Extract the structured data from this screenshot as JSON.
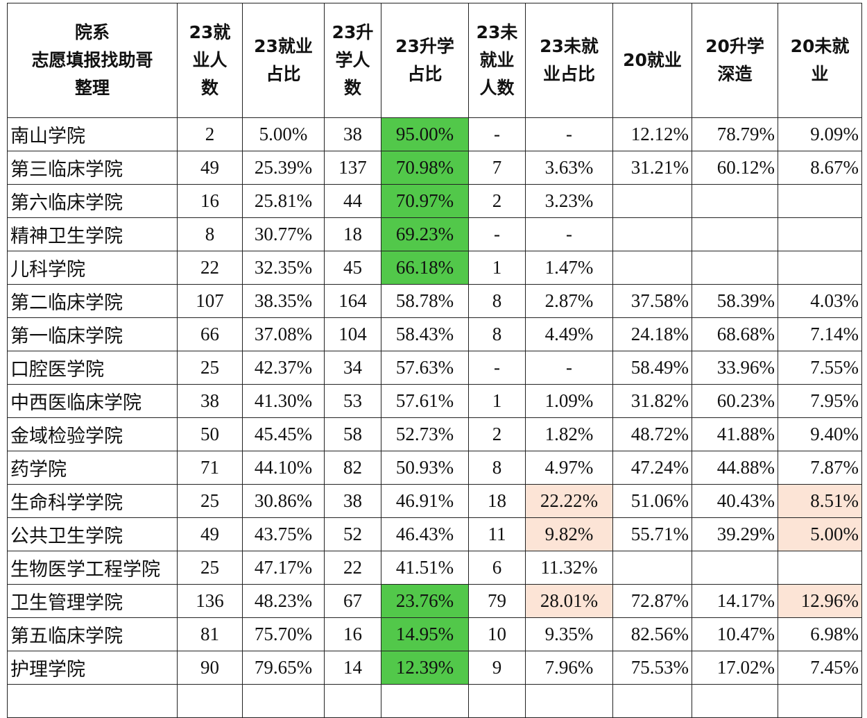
{
  "table": {
    "header": [
      "院系\n志愿填报找助哥\n整理",
      "23就\n业人\n数",
      "23就业\n占比",
      "23升\n学人\n数",
      "23升学\n占比",
      "23未\n就业\n人数",
      "23未就\n业占比",
      "20就业",
      "20升学\n深造",
      "20未就\n业"
    ],
    "rows": [
      [
        "南山学院",
        "2",
        "5.00%",
        "38",
        {
          "text": "95.00%",
          "fill": "#52c84a"
        },
        "-",
        "-",
        "12.12%",
        "78.79%",
        "9.09%"
      ],
      [
        "第三临床学院",
        "49",
        "25.39%",
        "137",
        {
          "text": "70.98%",
          "fill": "#52c84a"
        },
        "7",
        "3.63%",
        "31.21%",
        "60.12%",
        "8.67%"
      ],
      [
        "第六临床学院",
        "16",
        "25.81%",
        "44",
        {
          "text": "70.97%",
          "fill": "#52c84a"
        },
        "2",
        "3.23%",
        "",
        "",
        ""
      ],
      [
        "精神卫生学院",
        "8",
        "30.77%",
        "18",
        {
          "text": "69.23%",
          "fill": "#52c84a"
        },
        "-",
        "-",
        "",
        "",
        ""
      ],
      [
        "儿科学院",
        "22",
        "32.35%",
        "45",
        {
          "text": "66.18%",
          "fill": "#52c84a"
        },
        "1",
        "1.47%",
        "",
        "",
        ""
      ],
      [
        "第二临床学院",
        "107",
        "38.35%",
        "164",
        "58.78%",
        "8",
        "2.87%",
        "37.58%",
        "58.39%",
        "4.03%"
      ],
      [
        "第一临床学院",
        "66",
        "37.08%",
        "104",
        "58.43%",
        "8",
        "4.49%",
        "24.18%",
        "68.68%",
        "7.14%"
      ],
      [
        "口腔医学院",
        "25",
        "42.37%",
        "34",
        "57.63%",
        "-",
        "-",
        "58.49%",
        "33.96%",
        "7.55%"
      ],
      [
        "中西医临床学院",
        "38",
        "41.30%",
        "53",
        "57.61%",
        "1",
        "1.09%",
        "31.82%",
        "60.23%",
        "7.95%"
      ],
      [
        "金域检验学院",
        "50",
        "45.45%",
        "58",
        "52.73%",
        "2",
        "1.82%",
        "48.72%",
        "41.88%",
        "9.40%"
      ],
      [
        "药学院",
        "71",
        "44.10%",
        "82",
        "50.93%",
        "8",
        "4.97%",
        "47.24%",
        "44.88%",
        "7.87%"
      ],
      [
        "生命科学学院",
        "25",
        "30.86%",
        "38",
        "46.91%",
        "18",
        {
          "text": "22.22%",
          "fill": "#fce4d6"
        },
        "51.06%",
        "40.43%",
        {
          "text": "8.51%",
          "fill": "#fce4d6"
        }
      ],
      [
        "公共卫生学院",
        "49",
        "43.75%",
        "52",
        "46.43%",
        "11",
        {
          "text": "9.82%",
          "fill": "#fce4d6"
        },
        "55.71%",
        "39.29%",
        {
          "text": "5.00%",
          "fill": "#fce4d6"
        }
      ],
      [
        "生物医学工程学院",
        "25",
        "47.17%",
        "22",
        "41.51%",
        "6",
        "11.32%",
        "",
        "",
        ""
      ],
      [
        "卫生管理学院",
        "136",
        "48.23%",
        "67",
        {
          "text": "23.76%",
          "fill": "#52c84a"
        },
        "79",
        {
          "text": "28.01%",
          "fill": "#fce4d6"
        },
        "72.87%",
        "14.17%",
        {
          "text": "12.96%",
          "fill": "#fce4d6"
        }
      ],
      [
        "第五临床学院",
        "81",
        "75.70%",
        "16",
        {
          "text": "14.95%",
          "fill": "#52c84a"
        },
        "10",
        "9.35%",
        "82.56%",
        "10.47%",
        "6.98%"
      ],
      [
        "护理学院",
        "90",
        "79.65%",
        "14",
        {
          "text": "12.39%",
          "fill": "#52c84a"
        },
        "9",
        "7.96%",
        "75.53%",
        "17.02%",
        "7.45%"
      ]
    ]
  }
}
